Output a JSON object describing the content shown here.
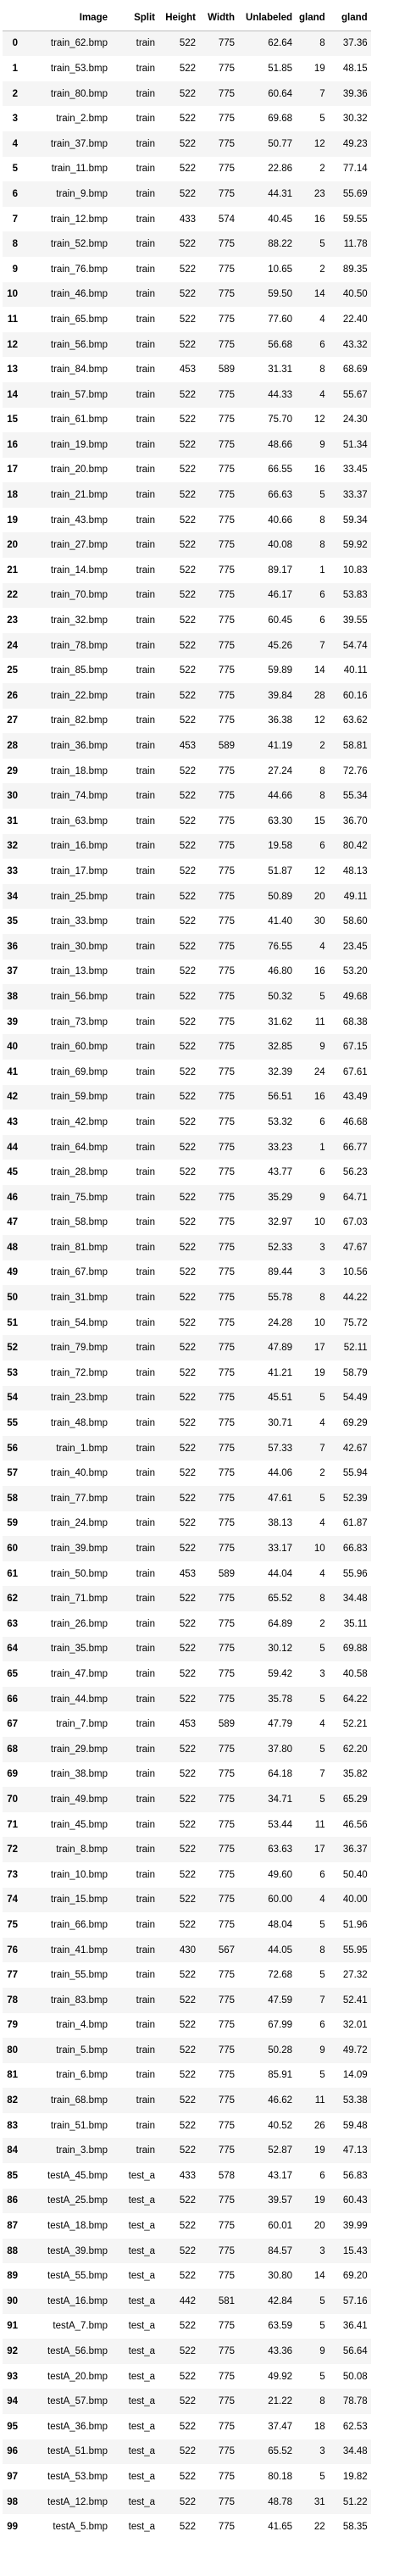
{
  "table": {
    "columns": [
      "",
      "Image",
      "Split",
      "Height",
      "Width",
      "Unlabeled",
      "gland",
      "gland"
    ],
    "rows": [
      [
        "0",
        "train_62.bmp",
        "train",
        "522",
        "775",
        "62.64",
        "8",
        "37.36"
      ],
      [
        "1",
        "train_53.bmp",
        "train",
        "522",
        "775",
        "51.85",
        "19",
        "48.15"
      ],
      [
        "2",
        "train_80.bmp",
        "train",
        "522",
        "775",
        "60.64",
        "7",
        "39.36"
      ],
      [
        "3",
        "train_2.bmp",
        "train",
        "522",
        "775",
        "69.68",
        "5",
        "30.32"
      ],
      [
        "4",
        "train_37.bmp",
        "train",
        "522",
        "775",
        "50.77",
        "12",
        "49.23"
      ],
      [
        "5",
        "train_11.bmp",
        "train",
        "522",
        "775",
        "22.86",
        "2",
        "77.14"
      ],
      [
        "6",
        "train_9.bmp",
        "train",
        "522",
        "775",
        "44.31",
        "23",
        "55.69"
      ],
      [
        "7",
        "train_12.bmp",
        "train",
        "433",
        "574",
        "40.45",
        "16",
        "59.55"
      ],
      [
        "8",
        "train_52.bmp",
        "train",
        "522",
        "775",
        "88.22",
        "5",
        "11.78"
      ],
      [
        "9",
        "train_76.bmp",
        "train",
        "522",
        "775",
        "10.65",
        "2",
        "89.35"
      ],
      [
        "10",
        "train_46.bmp",
        "train",
        "522",
        "775",
        "59.50",
        "14",
        "40.50"
      ],
      [
        "11",
        "train_65.bmp",
        "train",
        "522",
        "775",
        "77.60",
        "4",
        "22.40"
      ],
      [
        "12",
        "train_56.bmp",
        "train",
        "522",
        "775",
        "56.68",
        "6",
        "43.32"
      ],
      [
        "13",
        "train_84.bmp",
        "train",
        "453",
        "589",
        "31.31",
        "8",
        "68.69"
      ],
      [
        "14",
        "train_57.bmp",
        "train",
        "522",
        "775",
        "44.33",
        "4",
        "55.67"
      ],
      [
        "15",
        "train_61.bmp",
        "train",
        "522",
        "775",
        "75.70",
        "12",
        "24.30"
      ],
      [
        "16",
        "train_19.bmp",
        "train",
        "522",
        "775",
        "48.66",
        "9",
        "51.34"
      ],
      [
        "17",
        "train_20.bmp",
        "train",
        "522",
        "775",
        "66.55",
        "16",
        "33.45"
      ],
      [
        "18",
        "train_21.bmp",
        "train",
        "522",
        "775",
        "66.63",
        "5",
        "33.37"
      ],
      [
        "19",
        "train_43.bmp",
        "train",
        "522",
        "775",
        "40.66",
        "8",
        "59.34"
      ],
      [
        "20",
        "train_27.bmp",
        "train",
        "522",
        "775",
        "40.08",
        "8",
        "59.92"
      ],
      [
        "21",
        "train_14.bmp",
        "train",
        "522",
        "775",
        "89.17",
        "1",
        "10.83"
      ],
      [
        "22",
        "train_70.bmp",
        "train",
        "522",
        "775",
        "46.17",
        "6",
        "53.83"
      ],
      [
        "23",
        "train_32.bmp",
        "train",
        "522",
        "775",
        "60.45",
        "6",
        "39.55"
      ],
      [
        "24",
        "train_78.bmp",
        "train",
        "522",
        "775",
        "45.26",
        "7",
        "54.74"
      ],
      [
        "25",
        "train_85.bmp",
        "train",
        "522",
        "775",
        "59.89",
        "14",
        "40.11"
      ],
      [
        "26",
        "train_22.bmp",
        "train",
        "522",
        "775",
        "39.84",
        "28",
        "60.16"
      ],
      [
        "27",
        "train_82.bmp",
        "train",
        "522",
        "775",
        "36.38",
        "12",
        "63.62"
      ],
      [
        "28",
        "train_36.bmp",
        "train",
        "453",
        "589",
        "41.19",
        "2",
        "58.81"
      ],
      [
        "29",
        "train_18.bmp",
        "train",
        "522",
        "775",
        "27.24",
        "8",
        "72.76"
      ],
      [
        "30",
        "train_74.bmp",
        "train",
        "522",
        "775",
        "44.66",
        "8",
        "55.34"
      ],
      [
        "31",
        "train_63.bmp",
        "train",
        "522",
        "775",
        "63.30",
        "15",
        "36.70"
      ],
      [
        "32",
        "train_16.bmp",
        "train",
        "522",
        "775",
        "19.58",
        "6",
        "80.42"
      ],
      [
        "33",
        "train_17.bmp",
        "train",
        "522",
        "775",
        "51.87",
        "12",
        "48.13"
      ],
      [
        "34",
        "train_25.bmp",
        "train",
        "522",
        "775",
        "50.89",
        "20",
        "49.11"
      ],
      [
        "35",
        "train_33.bmp",
        "train",
        "522",
        "775",
        "41.40",
        "30",
        "58.60"
      ],
      [
        "36",
        "train_30.bmp",
        "train",
        "522",
        "775",
        "76.55",
        "4",
        "23.45"
      ],
      [
        "37",
        "train_13.bmp",
        "train",
        "522",
        "775",
        "46.80",
        "16",
        "53.20"
      ],
      [
        "38",
        "train_56.bmp",
        "train",
        "522",
        "775",
        "50.32",
        "5",
        "49.68"
      ],
      [
        "39",
        "train_73.bmp",
        "train",
        "522",
        "775",
        "31.62",
        "11",
        "68.38"
      ],
      [
        "40",
        "train_60.bmp",
        "train",
        "522",
        "775",
        "32.85",
        "9",
        "67.15"
      ],
      [
        "41",
        "train_69.bmp",
        "train",
        "522",
        "775",
        "32.39",
        "24",
        "67.61"
      ],
      [
        "42",
        "train_59.bmp",
        "train",
        "522",
        "775",
        "56.51",
        "16",
        "43.49"
      ],
      [
        "43",
        "train_42.bmp",
        "train",
        "522",
        "775",
        "53.32",
        "6",
        "46.68"
      ],
      [
        "44",
        "train_64.bmp",
        "train",
        "522",
        "775",
        "33.23",
        "1",
        "66.77"
      ],
      [
        "45",
        "train_28.bmp",
        "train",
        "522",
        "775",
        "43.77",
        "6",
        "56.23"
      ],
      [
        "46",
        "train_75.bmp",
        "train",
        "522",
        "775",
        "35.29",
        "9",
        "64.71"
      ],
      [
        "47",
        "train_58.bmp",
        "train",
        "522",
        "775",
        "32.97",
        "10",
        "67.03"
      ],
      [
        "48",
        "train_81.bmp",
        "train",
        "522",
        "775",
        "52.33",
        "3",
        "47.67"
      ],
      [
        "49",
        "train_67.bmp",
        "train",
        "522",
        "775",
        "89.44",
        "3",
        "10.56"
      ],
      [
        "50",
        "train_31.bmp",
        "train",
        "522",
        "775",
        "55.78",
        "8",
        "44.22"
      ],
      [
        "51",
        "train_54.bmp",
        "train",
        "522",
        "775",
        "24.28",
        "10",
        "75.72"
      ],
      [
        "52",
        "train_79.bmp",
        "train",
        "522",
        "775",
        "47.89",
        "17",
        "52.11"
      ],
      [
        "53",
        "train_72.bmp",
        "train",
        "522",
        "775",
        "41.21",
        "19",
        "58.79"
      ],
      [
        "54",
        "train_23.bmp",
        "train",
        "522",
        "775",
        "45.51",
        "5",
        "54.49"
      ],
      [
        "55",
        "train_48.bmp",
        "train",
        "522",
        "775",
        "30.71",
        "4",
        "69.29"
      ],
      [
        "56",
        "train_1.bmp",
        "train",
        "522",
        "775",
        "57.33",
        "7",
        "42.67"
      ],
      [
        "57",
        "train_40.bmp",
        "train",
        "522",
        "775",
        "44.06",
        "2",
        "55.94"
      ],
      [
        "58",
        "train_77.bmp",
        "train",
        "522",
        "775",
        "47.61",
        "5",
        "52.39"
      ],
      [
        "59",
        "train_24.bmp",
        "train",
        "522",
        "775",
        "38.13",
        "4",
        "61.87"
      ],
      [
        "60",
        "train_39.bmp",
        "train",
        "522",
        "775",
        "33.17",
        "10",
        "66.83"
      ],
      [
        "61",
        "train_50.bmp",
        "train",
        "453",
        "589",
        "44.04",
        "4",
        "55.96"
      ],
      [
        "62",
        "train_71.bmp",
        "train",
        "522",
        "775",
        "65.52",
        "8",
        "34.48"
      ],
      [
        "63",
        "train_26.bmp",
        "train",
        "522",
        "775",
        "64.89",
        "2",
        "35.11"
      ],
      [
        "64",
        "train_35.bmp",
        "train",
        "522",
        "775",
        "30.12",
        "5",
        "69.88"
      ],
      [
        "65",
        "train_47.bmp",
        "train",
        "522",
        "775",
        "59.42",
        "3",
        "40.58"
      ],
      [
        "66",
        "train_44.bmp",
        "train",
        "522",
        "775",
        "35.78",
        "5",
        "64.22"
      ],
      [
        "67",
        "train_7.bmp",
        "train",
        "453",
        "589",
        "47.79",
        "4",
        "52.21"
      ],
      [
        "68",
        "train_29.bmp",
        "train",
        "522",
        "775",
        "37.80",
        "5",
        "62.20"
      ],
      [
        "69",
        "train_38.bmp",
        "train",
        "522",
        "775",
        "64.18",
        "7",
        "35.82"
      ],
      [
        "70",
        "train_49.bmp",
        "train",
        "522",
        "775",
        "34.71",
        "5",
        "65.29"
      ],
      [
        "71",
        "train_45.bmp",
        "train",
        "522",
        "775",
        "53.44",
        "11",
        "46.56"
      ],
      [
        "72",
        "train_8.bmp",
        "train",
        "522",
        "775",
        "63.63",
        "17",
        "36.37"
      ],
      [
        "73",
        "train_10.bmp",
        "train",
        "522",
        "775",
        "49.60",
        "6",
        "50.40"
      ],
      [
        "74",
        "train_15.bmp",
        "train",
        "522",
        "775",
        "60.00",
        "4",
        "40.00"
      ],
      [
        "75",
        "train_66.bmp",
        "train",
        "522",
        "775",
        "48.04",
        "5",
        "51.96"
      ],
      [
        "76",
        "train_41.bmp",
        "train",
        "430",
        "567",
        "44.05",
        "8",
        "55.95"
      ],
      [
        "77",
        "train_55.bmp",
        "train",
        "522",
        "775",
        "72.68",
        "5",
        "27.32"
      ],
      [
        "78",
        "train_83.bmp",
        "train",
        "522",
        "775",
        "47.59",
        "7",
        "52.41"
      ],
      [
        "79",
        "train_4.bmp",
        "train",
        "522",
        "775",
        "67.99",
        "6",
        "32.01"
      ],
      [
        "80",
        "train_5.bmp",
        "train",
        "522",
        "775",
        "50.28",
        "9",
        "49.72"
      ],
      [
        "81",
        "train_6.bmp",
        "train",
        "522",
        "775",
        "85.91",
        "5",
        "14.09"
      ],
      [
        "82",
        "train_68.bmp",
        "train",
        "522",
        "775",
        "46.62",
        "11",
        "53.38"
      ],
      [
        "83",
        "train_51.bmp",
        "train",
        "522",
        "775",
        "40.52",
        "26",
        "59.48"
      ],
      [
        "84",
        "train_3.bmp",
        "train",
        "522",
        "775",
        "52.87",
        "19",
        "47.13"
      ],
      [
        "85",
        "testA_45.bmp",
        "test_a",
        "433",
        "578",
        "43.17",
        "6",
        "56.83"
      ],
      [
        "86",
        "testA_25.bmp",
        "test_a",
        "522",
        "775",
        "39.57",
        "19",
        "60.43"
      ],
      [
        "87",
        "testA_18.bmp",
        "test_a",
        "522",
        "775",
        "60.01",
        "20",
        "39.99"
      ],
      [
        "88",
        "testA_39.bmp",
        "test_a",
        "522",
        "775",
        "84.57",
        "3",
        "15.43"
      ],
      [
        "89",
        "testA_55.bmp",
        "test_a",
        "522",
        "775",
        "30.80",
        "14",
        "69.20"
      ],
      [
        "90",
        "testA_16.bmp",
        "test_a",
        "442",
        "581",
        "42.84",
        "5",
        "57.16"
      ],
      [
        "91",
        "testA_7.bmp",
        "test_a",
        "522",
        "775",
        "63.59",
        "5",
        "36.41"
      ],
      [
        "92",
        "testA_56.bmp",
        "test_a",
        "522",
        "775",
        "43.36",
        "9",
        "56.64"
      ],
      [
        "93",
        "testA_20.bmp",
        "test_a",
        "522",
        "775",
        "49.92",
        "5",
        "50.08"
      ],
      [
        "94",
        "testA_57.bmp",
        "test_a",
        "522",
        "775",
        "21.22",
        "8",
        "78.78"
      ],
      [
        "95",
        "testA_36.bmp",
        "test_a",
        "522",
        "775",
        "37.47",
        "18",
        "62.53"
      ],
      [
        "96",
        "testA_51.bmp",
        "test_a",
        "522",
        "775",
        "65.52",
        "3",
        "34.48"
      ],
      [
        "97",
        "testA_53.bmp",
        "test_a",
        "522",
        "775",
        "80.18",
        "5",
        "19.82"
      ],
      [
        "98",
        "testA_12.bmp",
        "test_a",
        "522",
        "775",
        "48.78",
        "31",
        "51.22"
      ],
      [
        "99",
        "testA_5.bmp",
        "test_a",
        "522",
        "775",
        "41.65",
        "22",
        "58.35"
      ]
    ]
  }
}
